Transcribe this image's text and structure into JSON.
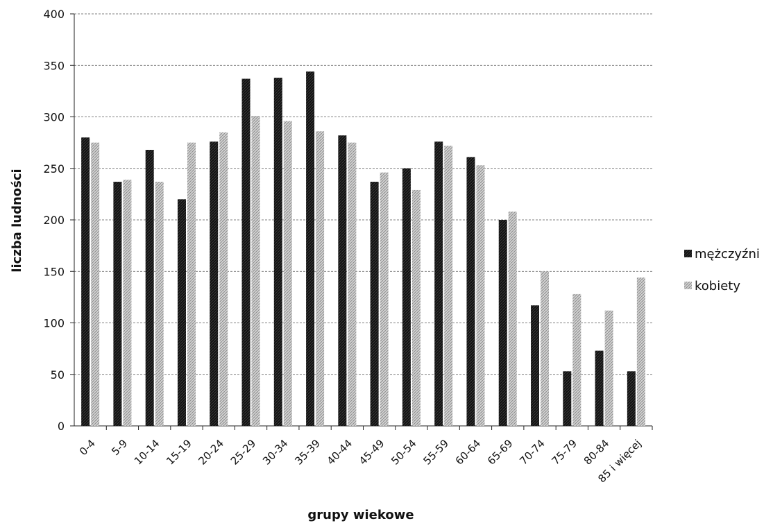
{
  "chart_data": {
    "type": "bar",
    "xlabel": "grupy wiekowe",
    "ylabel": "liczba ludności",
    "ylim": [
      0,
      400
    ],
    "yticks": [
      0,
      50,
      100,
      150,
      200,
      250,
      300,
      350,
      400
    ],
    "grid": true,
    "legend_position": "right",
    "categories": [
      "0-4",
      "5-9",
      "10-14",
      "15-19",
      "20-24",
      "25-29",
      "30-34",
      "35-39",
      "40-44",
      "45-49",
      "50-54",
      "55-59",
      "60-64",
      "65-69",
      "70-74",
      "75-79",
      "80-84",
      "85 i więcej"
    ],
    "series": [
      {
        "name": "mężczyźni",
        "color": "#111111",
        "values": [
          280,
          237,
          268,
          220,
          276,
          337,
          338,
          344,
          282,
          237,
          250,
          276,
          261,
          200,
          117,
          53,
          73,
          53
        ]
      },
      {
        "name": "kobiety",
        "color": "#b5b5b5",
        "values": [
          275,
          239,
          237,
          275,
          285,
          301,
          296,
          286,
          275,
          246,
          229,
          272,
          253,
          208,
          150,
          128,
          112,
          144
        ]
      }
    ]
  }
}
